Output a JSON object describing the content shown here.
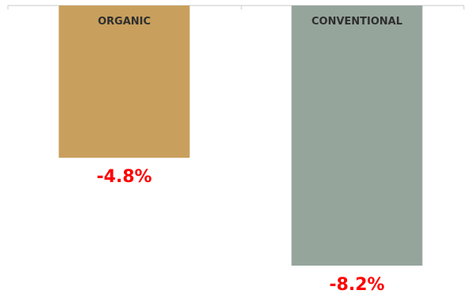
{
  "chart_data": {
    "type": "bar",
    "categories": [
      "ORGANIC",
      "CONVENTIONAL"
    ],
    "values": [
      -4.8,
      -8.2
    ],
    "value_labels": [
      "-4.8%",
      "-8.2%"
    ],
    "ylim": [
      -8.2,
      0
    ],
    "grid": false,
    "colors": {
      "bars": [
        "#c89f5d",
        "#96a59c"
      ],
      "value_label": "#ff0000",
      "category_label": "#2e2e2e",
      "axis": "#c8c8c8"
    }
  }
}
